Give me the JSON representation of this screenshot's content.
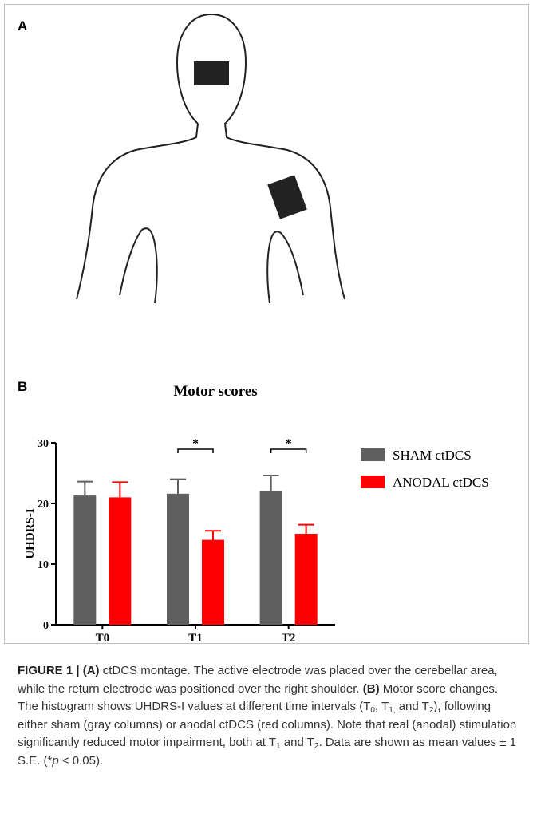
{
  "panel_a_label": "A",
  "panel_b_label": "B",
  "chart_data": {
    "type": "bar",
    "title": "Motor scores",
    "y_label": "UHDRS-I",
    "categories": [
      "T0",
      "T1",
      "T2"
    ],
    "series": [
      {
        "name": "SHAM ctDCS",
        "color": "#5f5f5f",
        "values": [
          21.3,
          21.6,
          22
        ],
        "errors": [
          2.3,
          2.4,
          2.6
        ]
      },
      {
        "name": "ANODAL ctDCS",
        "color": "#ff0000",
        "values": [
          21,
          14,
          15
        ],
        "errors": [
          2.5,
          1.5,
          1.5
        ]
      }
    ],
    "ylim": [
      0,
      30
    ],
    "yticks": [
      0,
      10,
      20,
      30
    ],
    "annotations": [
      {
        "category": "T1",
        "text": "*"
      },
      {
        "category": "T2",
        "text": "*"
      }
    ],
    "legend": "right"
  },
  "caption": [
    {
      "text": "FIGURE 1 | (A)",
      "style": "bold"
    },
    {
      "text": " ctDCS montage. The active electrode was placed over the cerebellar area, while the return electrode was positioned over the right shoulder. "
    },
    {
      "text": "(B)",
      "style": "bold"
    },
    {
      "text": " Motor score changes. The histogram shows UHDRS-I values at different time intervals (T"
    },
    {
      "text": "0",
      "style": "sub"
    },
    {
      "text": ", T"
    },
    {
      "text": "1,",
      "style": "sub"
    },
    {
      "text": " and T"
    },
    {
      "text": "2",
      "style": "sub"
    },
    {
      "text": "), following either sham (gray columns) or anodal ctDCS (red columns). Note that real (anodal) stimulation significantly reduced motor impairment, both at T"
    },
    {
      "text": "1",
      "style": "sub"
    },
    {
      "text": " and T"
    },
    {
      "text": "2",
      "style": "sub"
    },
    {
      "text": ". Data are shown as mean values ± 1 S.E. (*"
    },
    {
      "text": "p",
      "style": "italic"
    },
    {
      "text": " < 0.05)."
    }
  ]
}
